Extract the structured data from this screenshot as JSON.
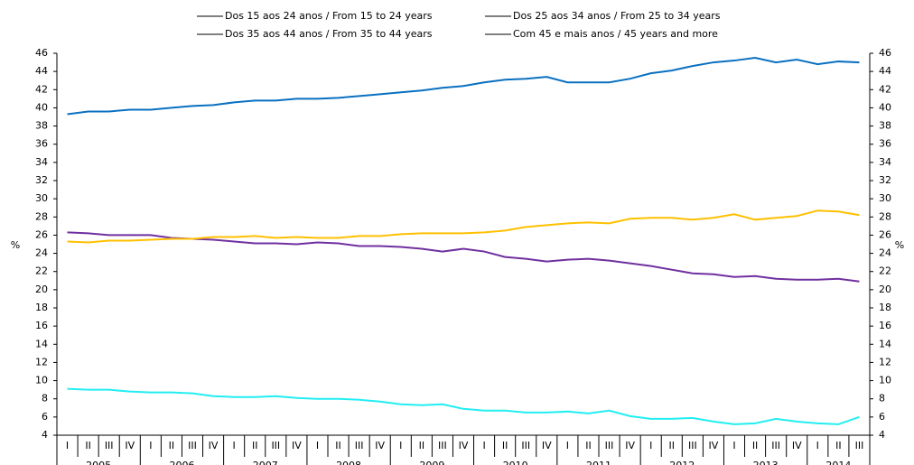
{
  "chart_data": {
    "type": "line",
    "categories": [
      "I",
      "II",
      "III",
      "IV",
      "I",
      "II",
      "III",
      "IV",
      "I",
      "II",
      "III",
      "IV",
      "I",
      "II",
      "III",
      "IV",
      "I",
      "II",
      "III",
      "IV",
      "I",
      "II",
      "III",
      "IV",
      "I",
      "II",
      "III",
      "IV",
      "I",
      "II",
      "III",
      "IV",
      "I",
      "II",
      "III",
      "IV",
      "I",
      "II",
      "III"
    ],
    "years": [
      "2005",
      "2006",
      "2007",
      "2008",
      "2009",
      "2010",
      "2011",
      "2012",
      "2013",
      "2014"
    ],
    "series": [
      {
        "name": "Dos 15 aos 24 anos / From 15 to 24 years",
        "color": "#22eef2",
        "values": [
          9.1,
          9.0,
          9.0,
          8.8,
          8.7,
          8.7,
          8.6,
          8.3,
          8.2,
          8.2,
          8.3,
          8.1,
          8.0,
          8.0,
          7.9,
          7.7,
          7.4,
          7.3,
          7.4,
          6.9,
          6.7,
          6.7,
          6.5,
          6.5,
          6.6,
          6.4,
          6.7,
          6.1,
          5.8,
          5.8,
          5.9,
          5.5,
          5.2,
          5.3,
          5.8,
          5.5,
          5.3,
          5.2,
          6.0
        ]
      },
      {
        "name": "Dos 25 aos 34 anos / From 25 to 34 years",
        "color": "#7030a0",
        "values": [
          26.3,
          26.2,
          26.0,
          26.0,
          26.0,
          25.7,
          25.6,
          25.5,
          25.3,
          25.1,
          25.1,
          25.0,
          25.2,
          25.1,
          24.8,
          24.8,
          24.7,
          24.5,
          24.2,
          24.5,
          24.2,
          23.6,
          23.4,
          23.1,
          23.3,
          23.4,
          23.2,
          22.9,
          22.6,
          22.2,
          21.8,
          21.7,
          21.4,
          21.5,
          21.2,
          21.1,
          21.1,
          21.2,
          20.9
        ]
      },
      {
        "name": "Dos 35 aos 44 anos / From 35 to 44 years",
        "color": "#ffc000",
        "values": [
          25.3,
          25.2,
          25.4,
          25.4,
          25.5,
          25.6,
          25.6,
          25.8,
          25.8,
          25.9,
          25.7,
          25.8,
          25.7,
          25.7,
          25.9,
          25.9,
          26.1,
          26.2,
          26.2,
          26.2,
          26.3,
          26.5,
          26.9,
          27.1,
          27.3,
          27.4,
          27.3,
          27.8,
          27.9,
          27.9,
          27.7,
          27.9,
          28.3,
          27.7,
          27.9,
          28.1,
          28.7,
          28.6,
          28.2
        ]
      },
      {
        "name": "Com 45 e mais anos / 45 years and more",
        "color": "#0a70c0",
        "values": [
          39.3,
          39.6,
          39.6,
          39.8,
          39.8,
          40.0,
          40.2,
          40.3,
          40.6,
          40.8,
          40.8,
          41.0,
          41.0,
          41.1,
          41.3,
          41.5,
          41.7,
          41.9,
          42.2,
          42.4,
          42.8,
          43.1,
          43.2,
          43.4,
          42.8,
          42.8,
          42.8,
          43.2,
          43.8,
          44.1,
          44.6,
          45.0,
          45.2,
          45.5,
          45.0,
          45.3,
          44.8,
          45.1,
          45.0
        ]
      }
    ],
    "ylabel": "%",
    "y2label": "%",
    "ylim": [
      4,
      46
    ],
    "yticks": [
      4,
      6,
      8,
      10,
      12,
      14,
      16,
      18,
      20,
      22,
      24,
      26,
      28,
      30,
      32,
      34,
      36,
      38,
      40,
      42,
      44,
      46
    ],
    "y2lim": [
      4,
      46
    ],
    "y2ticks": [
      4,
      6,
      8,
      10,
      12,
      14,
      16,
      18,
      20,
      22,
      24,
      26,
      28,
      30,
      32,
      34,
      36,
      38,
      40,
      42,
      44,
      46
    ]
  }
}
